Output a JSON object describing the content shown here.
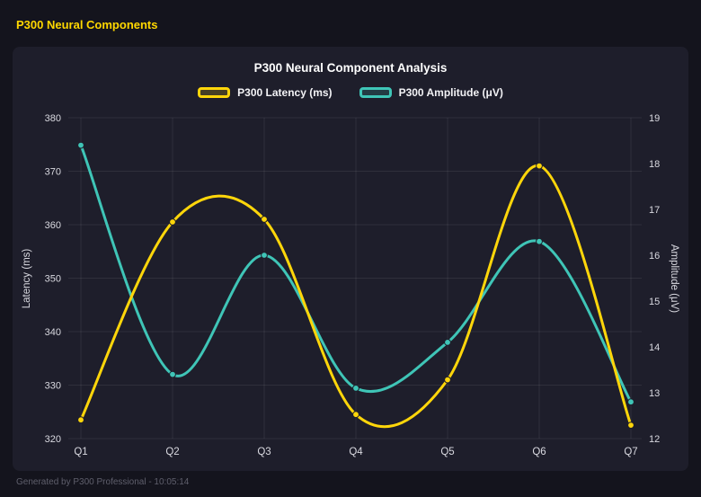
{
  "page": {
    "header_title": "P300 Neural Components",
    "footer_text": "Generated by P300 Professional - 10:05:14"
  },
  "chart_data": {
    "type": "line",
    "title": "P300 Neural Component Analysis",
    "categories": [
      "Q1",
      "Q2",
      "Q3",
      "Q4",
      "Q5",
      "Q6",
      "Q7"
    ],
    "series": [
      {
        "name": "P300 Latency (ms)",
        "axis": "left",
        "color": "#ffd60a",
        "values": [
          323.5,
          360.5,
          361,
          324.5,
          331,
          371,
          322.5
        ]
      },
      {
        "name": "P300 Amplitude (μV)",
        "axis": "right",
        "color": "#3fc5b7",
        "values": [
          18.4,
          13.4,
          16.0,
          13.1,
          14.1,
          16.3,
          12.8
        ]
      }
    ],
    "left_axis": {
      "label": "Latency (ms)",
      "min": 320,
      "max": 380,
      "step": 10
    },
    "right_axis": {
      "label": "Amplitude (μV)",
      "min": 12,
      "max": 19,
      "step": 1
    },
    "grid": true,
    "legend_position": "top",
    "line_style": "smooth"
  }
}
